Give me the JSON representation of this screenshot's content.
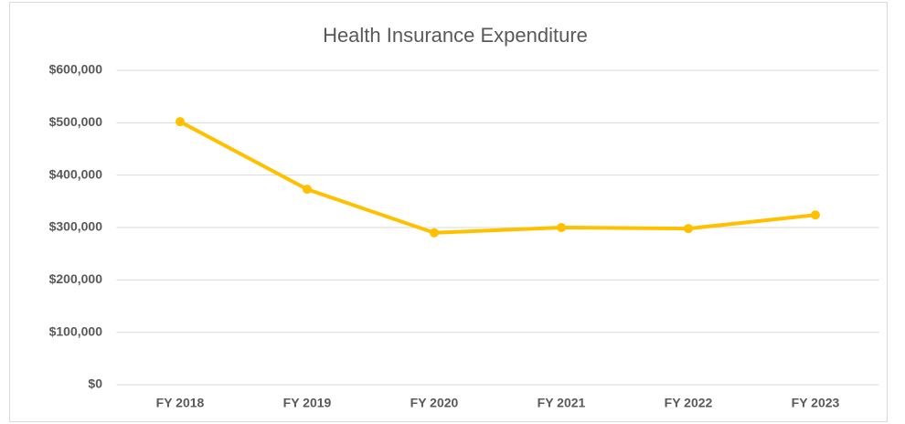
{
  "chart_data": {
    "type": "line",
    "title": "Health Insurance Expenditure",
    "categories": [
      "FY 2018",
      "FY 2019",
      "FY 2020",
      "FY 2021",
      "FY 2022",
      "FY 2023"
    ],
    "series": [
      {
        "color": "#ffc000",
        "values": [
          502000,
          373000,
          290000,
          300000,
          298000,
          324000
        ]
      }
    ],
    "ylim": [
      0,
      600000
    ],
    "yticks": [
      {
        "value": 0,
        "label": "$0"
      },
      {
        "value": 100000,
        "label": "$100,000"
      },
      {
        "value": 200000,
        "label": "$200,000"
      },
      {
        "value": 300000,
        "label": "$300,000"
      },
      {
        "value": 400000,
        "label": "$400,000"
      },
      {
        "value": 500000,
        "label": "$500,000"
      },
      {
        "value": 600000,
        "label": "$600,000"
      }
    ],
    "grid": true
  }
}
